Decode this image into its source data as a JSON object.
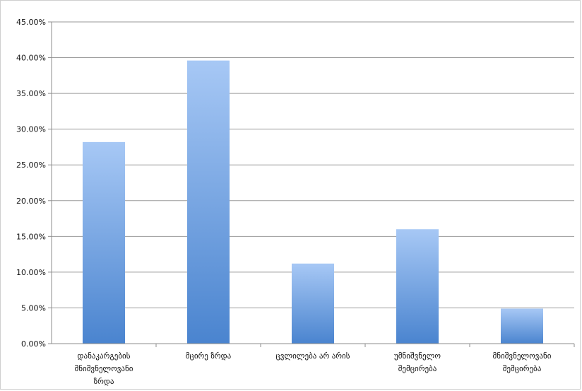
{
  "chart_data": {
    "type": "bar",
    "title": "",
    "xlabel": "",
    "ylabel": "",
    "categories": [
      [
        "დანაკარგების",
        "მნიშვნელოვანი",
        "ზრდა"
      ],
      [
        "მცირე ზრდა"
      ],
      [
        "ცვლილება არ არის"
      ],
      [
        "უმნიშვნელო",
        "შემცირება"
      ],
      [
        "მნიშვნელოვანი",
        "შემცირება"
      ]
    ],
    "values": [
      28.2,
      39.6,
      11.2,
      16.0,
      4.9
    ],
    "value_format": "percent",
    "ylim": [
      0,
      45
    ],
    "yticks": [
      "0.00%",
      "5.00%",
      "10.00%",
      "15.00%",
      "20.00%",
      "25.00%",
      "30.00%",
      "35.00%",
      "40.00%",
      "45.00%"
    ],
    "ytick_values": [
      0,
      5,
      10,
      15,
      20,
      25,
      30,
      35,
      40,
      45
    ],
    "grid": true,
    "legend": "none",
    "colors": {
      "bar_top": "#a7c8f5",
      "bar_bottom": "#4a84cf",
      "grid": "#9a9a9a",
      "axis": "#8c8c8c"
    }
  }
}
